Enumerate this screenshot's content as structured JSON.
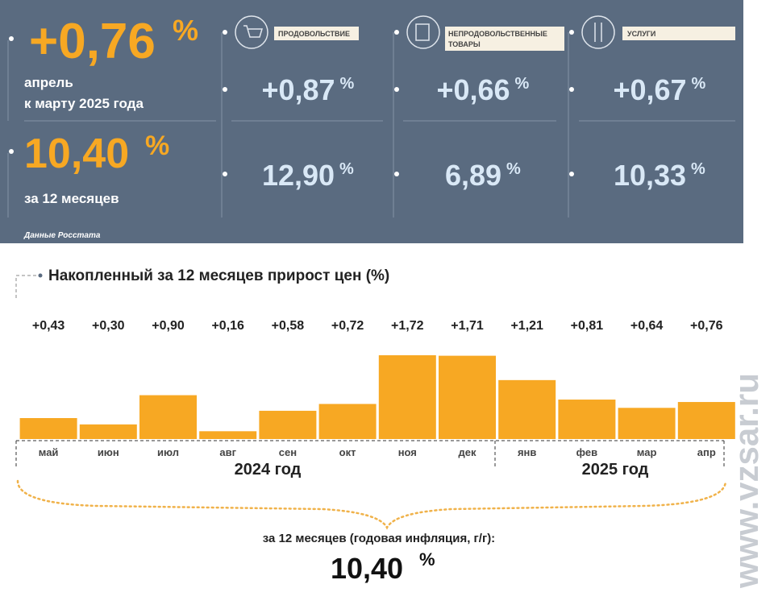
{
  "panel": {
    "monthly_value": "+0,76",
    "percent_sign": "%",
    "monthly_caption": [
      "апрель",
      "к марту 2025 года"
    ],
    "annual_value": "10,40",
    "annual_caption": "за 12 месяцев",
    "source": "Данные Росстата",
    "groups": [
      {
        "label": "ПРОДОВОЛЬСТВИЕ",
        "monthly": "+0,87",
        "annual": "12,90"
      },
      {
        "label": [
          "НЕПРОДОВОЛЬСТВЕННЫЕ",
          "ТОВАРЫ"
        ],
        "monthly": "+0,66",
        "annual": "6,89"
      },
      {
        "label": "УСЛУГИ",
        "monthly": "+0,67",
        "annual": "10,33"
      }
    ]
  },
  "chart_data": {
    "type": "bar",
    "title": "Накопленный за 12 месяцев прирост цен (%)",
    "categories": [
      "май",
      "июн",
      "июл",
      "авг",
      "сен",
      "окт",
      "ноя",
      "дек",
      "янв",
      "фев",
      "мар",
      "апр"
    ],
    "values": [
      0.43,
      0.3,
      0.9,
      0.16,
      0.58,
      0.72,
      1.72,
      1.71,
      1.21,
      0.81,
      0.64,
      0.76
    ],
    "value_labels": [
      "+0,43",
      "+0,30",
      "+0,90",
      "+0,16",
      "+0,58",
      "+0,72",
      "+1,72",
      "+1,71",
      "+1,21",
      "+0,81",
      "+0,64",
      "+0,76"
    ],
    "color": "#f7a823",
    "years": [
      "2024 год",
      "2025 год"
    ],
    "footer": "за 12 месяцев (годовая инфляция, г/г):",
    "footer_value": "10,40",
    "footer_unit": "%"
  },
  "watermark": "www.vzsar.ru"
}
